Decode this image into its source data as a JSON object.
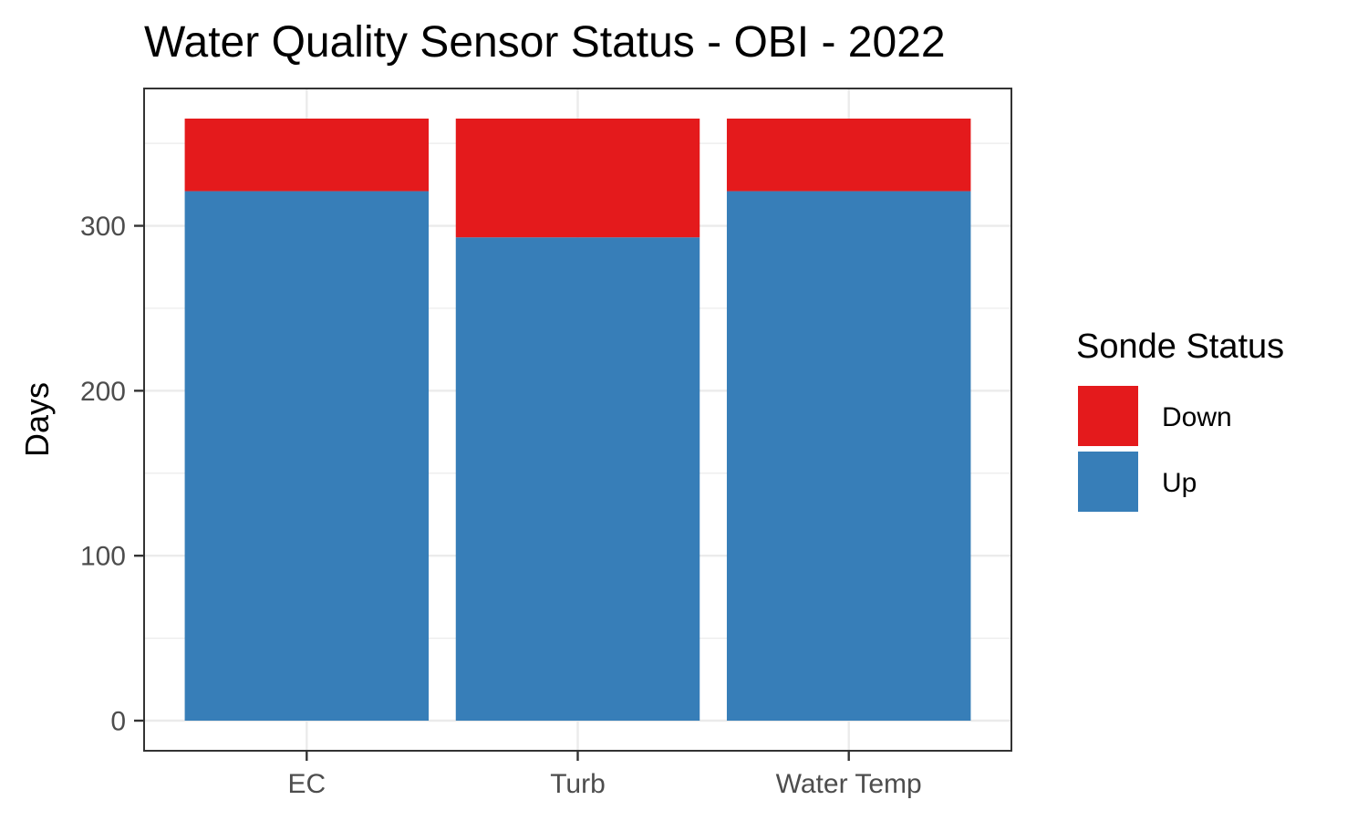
{
  "chart_data": {
    "type": "bar",
    "stacked": true,
    "title": "Water Quality Sensor Status - OBI - 2022",
    "xlabel": "",
    "ylabel": "Days",
    "categories": [
      "EC",
      "Turb",
      "Water Temp"
    ],
    "series": [
      {
        "name": "Up",
        "color": "#377EB8",
        "values": [
          321,
          293,
          321
        ]
      },
      {
        "name": "Down",
        "color": "#E41A1C",
        "values": [
          44,
          72,
          44
        ]
      }
    ],
    "ylim": [
      -18.25,
      383.25
    ],
    "yticks": [
      0,
      100,
      200,
      300
    ],
    "ytick_labels": [
      "0",
      "100",
      "200",
      "300"
    ],
    "grid": true,
    "legend": {
      "title": "Sonde Status",
      "position": "right",
      "items": [
        {
          "label": "Down",
          "color": "#E41A1C"
        },
        {
          "label": "Up",
          "color": "#377EB8"
        }
      ]
    }
  }
}
